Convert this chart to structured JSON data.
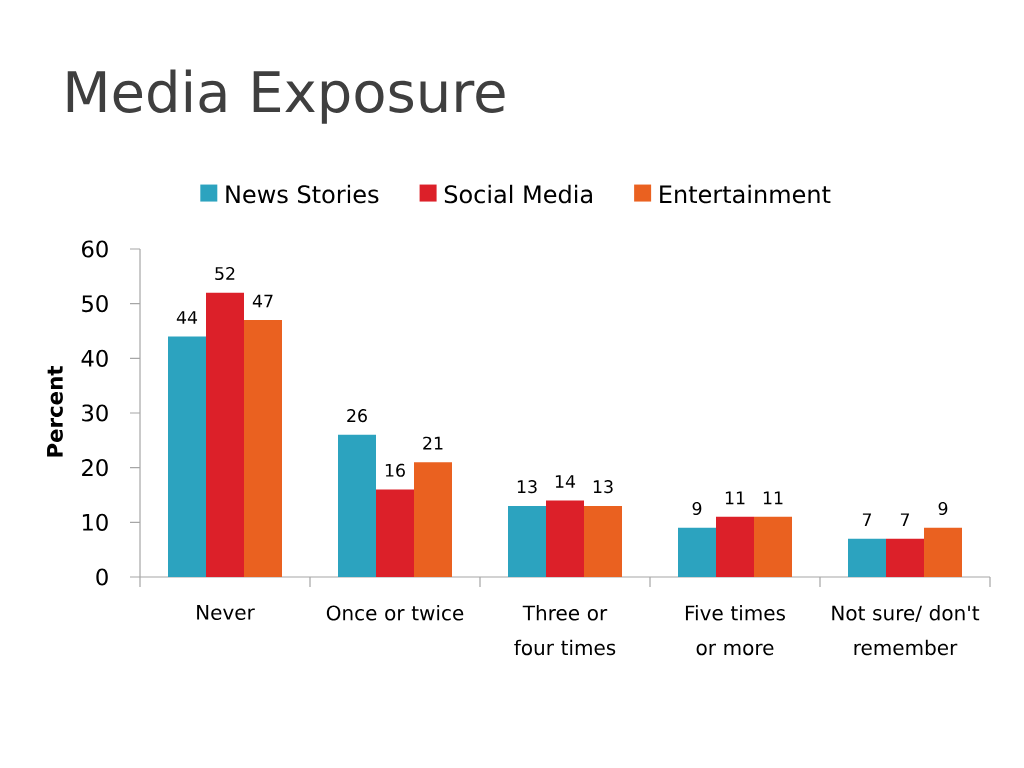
{
  "chart_data": {
    "type": "bar",
    "title": "Media Exposure",
    "ylabel": "Percent",
    "categories": [
      "Never",
      "Once or twice",
      "Three or four times",
      "Five times or more",
      "Not sure/ don't remember"
    ],
    "series": [
      {
        "name": "News Stories",
        "color": "#2ca3bf",
        "values": [
          44,
          26,
          13,
          9,
          7
        ]
      },
      {
        "name": "Social Media",
        "color": "#dc2029",
        "values": [
          52,
          16,
          14,
          11,
          7
        ]
      },
      {
        "name": "Entertainment",
        "color": "#ea6120",
        "values": [
          47,
          21,
          13,
          11,
          9
        ]
      }
    ],
    "ylim": [
      0,
      60
    ],
    "yticks": [
      0,
      10,
      20,
      30,
      40,
      50,
      60
    ],
    "data_labels": true,
    "legend": "top"
  }
}
